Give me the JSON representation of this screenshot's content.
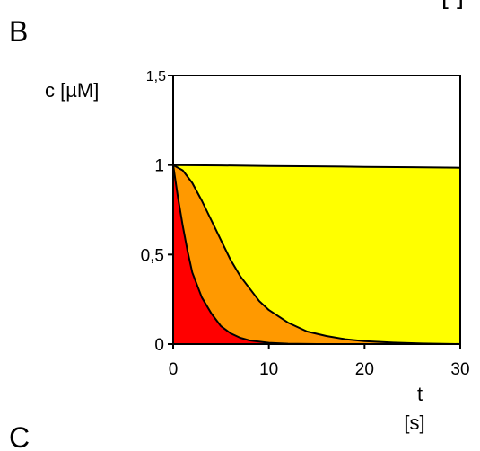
{
  "panel_labels": {
    "top": "B",
    "bottom": "C"
  },
  "corner_fragment": "[-]",
  "chart_data": {
    "type": "area",
    "ylabel": "c [µM]",
    "xlabel_line1": "t",
    "xlabel_line2": "[s]",
    "xlim": [
      0,
      30
    ],
    "ylim": [
      0,
      1.5
    ],
    "x_ticks": [
      {
        "value": 0,
        "label": "0"
      },
      {
        "value": 10,
        "label": "10"
      },
      {
        "value": 20,
        "label": "20"
      },
      {
        "value": 30,
        "label": "30"
      }
    ],
    "y_ticks": [
      {
        "value": 0,
        "label": "0"
      },
      {
        "value": 0.5,
        "label": "0,5"
      },
      {
        "value": 1,
        "label": "1"
      },
      {
        "value": 1.5,
        "label": "1,5"
      }
    ],
    "grid": false,
    "series": [
      {
        "color": "#ffff00",
        "points": [
          [
            0,
            1.0
          ],
          [
            5,
            0.998
          ],
          [
            10,
            0.995
          ],
          [
            15,
            0.993
          ],
          [
            20,
            0.99
          ],
          [
            25,
            0.988
          ],
          [
            30,
            0.985
          ]
        ]
      },
      {
        "color": "#ff9900",
        "points": [
          [
            0,
            1.0
          ],
          [
            1,
            0.97
          ],
          [
            2,
            0.9
          ],
          [
            3,
            0.8
          ],
          [
            4,
            0.69
          ],
          [
            5,
            0.58
          ],
          [
            6,
            0.47
          ],
          [
            7,
            0.38
          ],
          [
            8,
            0.31
          ],
          [
            9,
            0.24
          ],
          [
            10,
            0.19
          ],
          [
            12,
            0.12
          ],
          [
            14,
            0.07
          ],
          [
            16,
            0.045
          ],
          [
            18,
            0.027
          ],
          [
            20,
            0.016
          ],
          [
            23,
            0.008
          ],
          [
            26,
            0.003
          ],
          [
            30,
            0.0
          ]
        ]
      },
      {
        "color": "#ff0000",
        "points": [
          [
            0,
            1.0
          ],
          [
            0.5,
            0.82
          ],
          [
            1,
            0.66
          ],
          [
            1.5,
            0.52
          ],
          [
            2,
            0.4
          ],
          [
            3,
            0.26
          ],
          [
            4,
            0.17
          ],
          [
            5,
            0.1
          ],
          [
            6,
            0.06
          ],
          [
            7,
            0.035
          ],
          [
            8,
            0.02
          ],
          [
            10,
            0.007
          ],
          [
            12,
            0.002
          ],
          [
            15,
            0.0
          ]
        ]
      }
    ]
  }
}
